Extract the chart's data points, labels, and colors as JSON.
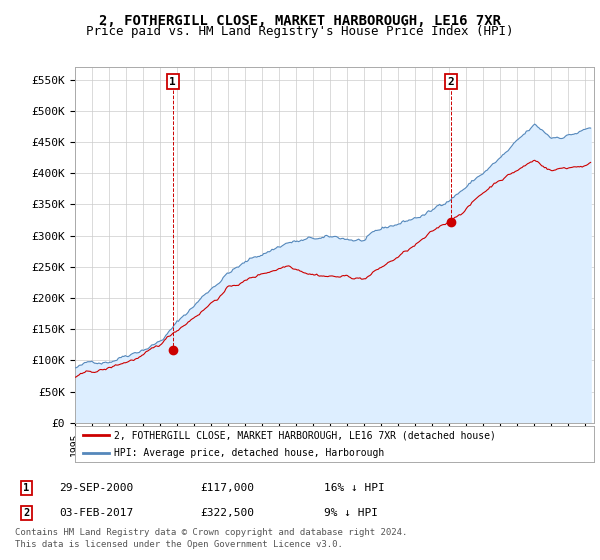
{
  "title": "2, FOTHERGILL CLOSE, MARKET HARBOROUGH, LE16 7XR",
  "subtitle": "Price paid vs. HM Land Registry's House Price Index (HPI)",
  "ylabel_ticks": [
    "£0",
    "£50K",
    "£100K",
    "£150K",
    "£200K",
    "£250K",
    "£300K",
    "£350K",
    "£400K",
    "£450K",
    "£500K",
    "£550K"
  ],
  "ytick_values": [
    0,
    50000,
    100000,
    150000,
    200000,
    250000,
    300000,
    350000,
    400000,
    450000,
    500000,
    550000
  ],
  "ylim": [
    0,
    570000
  ],
  "xlim_start": 1995.0,
  "xlim_end": 2025.5,
  "legend_line1": "2, FOTHERGILL CLOSE, MARKET HARBOROUGH, LE16 7XR (detached house)",
  "legend_line2": "HPI: Average price, detached house, Harborough",
  "point1_date": "29-SEP-2000",
  "point1_price": "£117,000",
  "point1_hpi": "16% ↓ HPI",
  "point1_x": 2000.75,
  "point1_y": 117000,
  "point2_date": "03-FEB-2017",
  "point2_price": "£322,500",
  "point2_hpi": "9% ↓ HPI",
  "point2_x": 2017.08,
  "point2_y": 322500,
  "footer": "Contains HM Land Registry data © Crown copyright and database right 2024.\nThis data is licensed under the Open Government Licence v3.0.",
  "red_color": "#CC0000",
  "blue_color": "#5588BB",
  "blue_fill": "#DDEEFF",
  "background_color": "#FFFFFF",
  "grid_color": "#CCCCCC",
  "title_fontsize": 10,
  "subtitle_fontsize": 9
}
